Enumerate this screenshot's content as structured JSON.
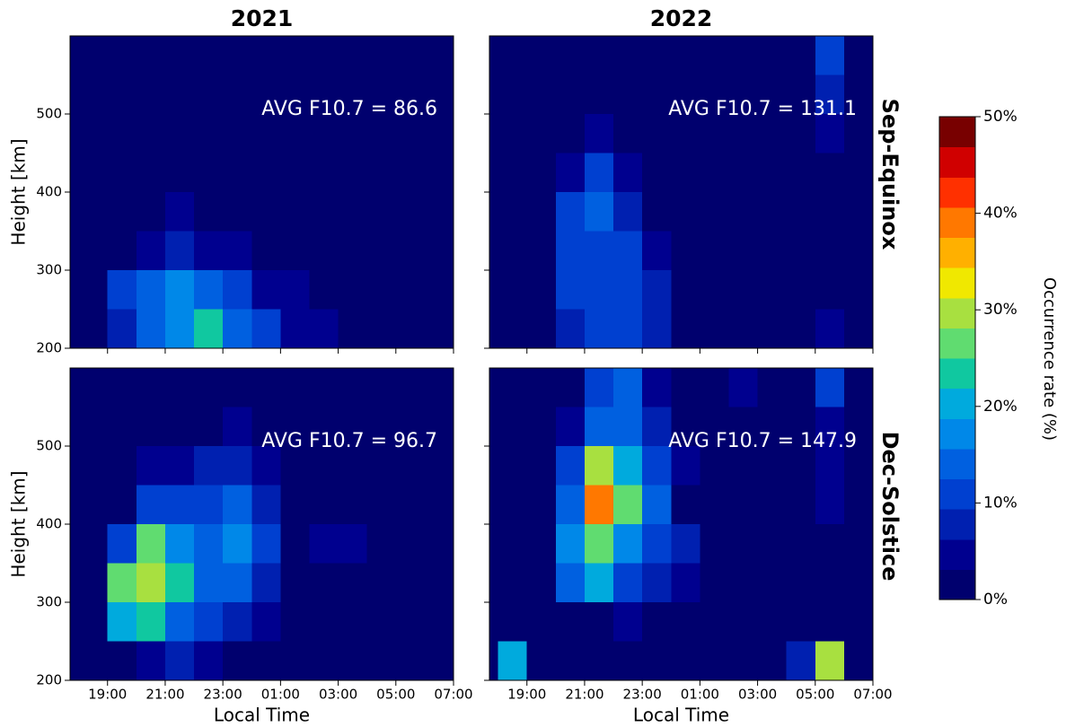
{
  "chart_data": [
    {
      "type": "heatmap",
      "title": "2021",
      "ylabel": "Height [km]",
      "annotation": "AVG F10.7 = 86.6",
      "xlim": [
        17.7,
        31
      ],
      "ylim": [
        200,
        600
      ],
      "xticks": [
        {
          "value": 19,
          "label": "19:00"
        },
        {
          "value": 21,
          "label": "21:00"
        },
        {
          "value": 23,
          "label": "23:00"
        },
        {
          "value": 25,
          "label": "01:00"
        },
        {
          "value": 27,
          "label": "03:00"
        },
        {
          "value": 29,
          "label": "05:00"
        },
        {
          "value": 31,
          "label": "07:00"
        }
      ],
      "yticks": [
        200,
        300,
        400,
        500
      ],
      "x_bins": [
        18,
        19,
        20,
        21,
        22,
        23,
        24,
        25,
        26,
        27,
        28,
        29,
        30,
        31
      ],
      "y_bins": [
        200,
        250,
        300,
        350,
        400,
        450,
        500,
        550,
        600
      ],
      "z": [
        [
          0,
          8,
          15,
          18,
          22,
          15,
          10,
          6,
          5,
          0,
          0,
          0,
          0
        ],
        [
          0,
          10,
          15,
          18,
          15,
          10,
          6,
          5,
          3,
          0,
          0,
          0,
          0
        ],
        [
          0,
          2,
          5,
          8,
          6,
          4,
          2,
          3,
          2,
          0,
          0,
          0,
          0
        ],
        [
          0,
          0,
          2,
          4,
          3,
          2,
          1,
          1,
          0,
          0,
          0,
          0,
          0
        ],
        [
          0,
          0,
          0,
          2,
          2,
          1,
          0,
          0,
          0,
          0,
          0,
          0,
          0
        ],
        [
          0,
          0,
          0,
          1,
          1,
          0,
          0,
          0,
          0,
          0,
          0,
          0,
          0
        ],
        [
          0,
          0,
          0,
          1,
          0,
          0,
          0,
          0,
          0,
          0,
          0,
          0,
          0
        ],
        [
          0,
          0,
          0,
          1,
          0,
          0,
          0,
          0,
          0,
          0,
          0,
          0,
          0
        ]
      ]
    },
    {
      "type": "heatmap",
      "title": "2022",
      "row_label": "Sep-Equinox",
      "annotation": "AVG F10.7 = 131.1",
      "xlim": [
        17.7,
        31
      ],
      "ylim": [
        200,
        600
      ],
      "xticks": [
        {
          "value": 19,
          "label": "19:00"
        },
        {
          "value": 21,
          "label": "21:00"
        },
        {
          "value": 23,
          "label": "23:00"
        },
        {
          "value": 25,
          "label": "01:00"
        },
        {
          "value": 27,
          "label": "03:00"
        },
        {
          "value": 29,
          "label": "05:00"
        },
        {
          "value": 31,
          "label": "07:00"
        }
      ],
      "yticks": [
        200,
        300,
        400,
        500
      ],
      "x_bins": [
        18,
        19,
        20,
        21,
        22,
        23,
        24,
        25,
        26,
        27,
        28,
        29,
        30,
        31
      ],
      "y_bins": [
        200,
        250,
        300,
        350,
        400,
        450,
        500,
        550,
        600
      ],
      "z": [
        [
          0,
          0,
          8,
          10,
          10,
          8,
          2,
          0,
          0,
          0,
          0,
          4,
          0
        ],
        [
          0,
          0,
          10,
          12,
          12,
          8,
          2,
          0,
          0,
          0,
          0,
          0,
          0
        ],
        [
          0,
          0,
          12,
          12,
          10,
          6,
          1,
          0,
          0,
          0,
          0,
          0,
          0
        ],
        [
          0,
          0,
          10,
          14,
          8,
          3,
          0,
          0,
          0,
          0,
          0,
          0,
          0
        ],
        [
          0,
          0,
          6,
          10,
          5,
          1,
          0,
          0,
          0,
          0,
          0,
          0,
          0
        ],
        [
          0,
          0,
          3,
          6,
          3,
          1,
          0,
          1,
          3,
          0,
          0,
          4,
          0
        ],
        [
          0,
          0,
          2,
          3,
          2,
          0,
          0,
          0,
          2,
          0,
          0,
          8,
          0
        ],
        [
          0,
          0,
          1,
          2,
          2,
          0,
          0,
          0,
          2,
          0,
          0,
          10,
          0
        ]
      ]
    },
    {
      "type": "heatmap",
      "ylabel": "Height [km]",
      "xlabel": "Local Time",
      "annotation": "AVG F10.7 = 96.7",
      "xlim": [
        17.7,
        31
      ],
      "ylim": [
        200,
        600
      ],
      "xticks": [
        {
          "value": 19,
          "label": "19:00"
        },
        {
          "value": 21,
          "label": "21:00"
        },
        {
          "value": 23,
          "label": "23:00"
        },
        {
          "value": 25,
          "label": "01:00"
        },
        {
          "value": 27,
          "label": "03:00"
        },
        {
          "value": 29,
          "label": "05:00"
        },
        {
          "value": 31,
          "label": "07:00"
        }
      ],
      "yticks": [
        200,
        300,
        400,
        500
      ],
      "x_bins": [
        18,
        19,
        20,
        21,
        22,
        23,
        24,
        25,
        26,
        27,
        28,
        29,
        30,
        31
      ],
      "y_bins": [
        200,
        250,
        300,
        350,
        400,
        450,
        500,
        550,
        600
      ],
      "z": [
        [
          0,
          2,
          5,
          8,
          6,
          3,
          2,
          1,
          0,
          0,
          0,
          0,
          0
        ],
        [
          0,
          20,
          22,
          15,
          12,
          8,
          5,
          2,
          1,
          0,
          0,
          0,
          0
        ],
        [
          0,
          25,
          30,
          22,
          15,
          15,
          8,
          3,
          3,
          2,
          0,
          0,
          0
        ],
        [
          0,
          10,
          25,
          18,
          14,
          18,
          10,
          3,
          4,
          5,
          0,
          0,
          0
        ],
        [
          0,
          2,
          10,
          10,
          12,
          14,
          8,
          3,
          3,
          3,
          0,
          0,
          0
        ],
        [
          0,
          0,
          5,
          6,
          8,
          8,
          4,
          1,
          0,
          0,
          0,
          0,
          0
        ],
        [
          0,
          0,
          2,
          3,
          3,
          4,
          1,
          0,
          0,
          0,
          0,
          0,
          0
        ],
        [
          0,
          0,
          0,
          1,
          2,
          1,
          0,
          0,
          0,
          0,
          0,
          0,
          0
        ]
      ]
    },
    {
      "type": "heatmap",
      "row_label": "Dec-Solstice",
      "xlabel": "Local Time",
      "annotation": "AVG F10.7 = 147.9",
      "xlim": [
        17.7,
        31
      ],
      "ylim": [
        200,
        600
      ],
      "xticks": [
        {
          "value": 19,
          "label": "19:00"
        },
        {
          "value": 21,
          "label": "21:00"
        },
        {
          "value": 23,
          "label": "23:00"
        },
        {
          "value": 25,
          "label": "01:00"
        },
        {
          "value": 27,
          "label": "03:00"
        },
        {
          "value": 29,
          "label": "05:00"
        },
        {
          "value": 31,
          "label": "07:00"
        }
      ],
      "yticks": [
        200,
        300,
        400,
        500
      ],
      "x_bins": [
        18,
        19,
        20,
        21,
        22,
        23,
        24,
        25,
        26,
        27,
        28,
        29,
        30,
        31
      ],
      "y_bins": [
        200,
        250,
        300,
        350,
        400,
        450,
        500,
        550,
        600
      ],
      "z": [
        [
          20,
          0,
          0,
          0,
          2,
          0,
          0,
          0,
          3,
          0,
          8,
          30,
          0
        ],
        [
          0,
          0,
          2,
          3,
          5,
          3,
          2,
          0,
          1,
          0,
          0,
          0,
          0
        ],
        [
          0,
          0,
          15,
          20,
          12,
          8,
          6,
          3,
          1,
          0,
          2,
          0,
          0
        ],
        [
          0,
          0,
          18,
          28,
          18,
          12,
          8,
          3,
          0,
          0,
          2,
          0,
          0
        ],
        [
          0,
          0,
          15,
          38,
          25,
          15,
          3,
          0,
          0,
          0,
          0,
          5,
          0
        ],
        [
          0,
          0,
          10,
          30,
          20,
          12,
          4,
          0,
          0,
          0,
          0,
          6,
          0
        ],
        [
          0,
          0,
          5,
          14,
          14,
          8,
          2,
          0,
          3,
          0,
          0,
          5,
          0
        ],
        [
          0,
          0,
          2,
          10,
          15,
          6,
          1,
          0,
          4,
          0,
          0,
          10,
          0
        ]
      ]
    }
  ],
  "colorbar": {
    "label": "Occurrence rate (%)",
    "lim": [
      0,
      50
    ],
    "ticks": [
      {
        "value": 0,
        "label": "0%"
      },
      {
        "value": 10,
        "label": "10%"
      },
      {
        "value": 20,
        "label": "20%"
      },
      {
        "value": 30,
        "label": "30%"
      },
      {
        "value": 40,
        "label": "40%"
      },
      {
        "value": 50,
        "label": "50%"
      }
    ],
    "colors": [
      "#00006e",
      "#00008f",
      "#0020b0",
      "#0040d0",
      "#0060e0",
      "#0088e8",
      "#00aadd",
      "#10c8a0",
      "#60dc70",
      "#a8e040",
      "#f0e800",
      "#ffb000",
      "#ff7800",
      "#ff3000",
      "#d00000",
      "#780000"
    ]
  }
}
